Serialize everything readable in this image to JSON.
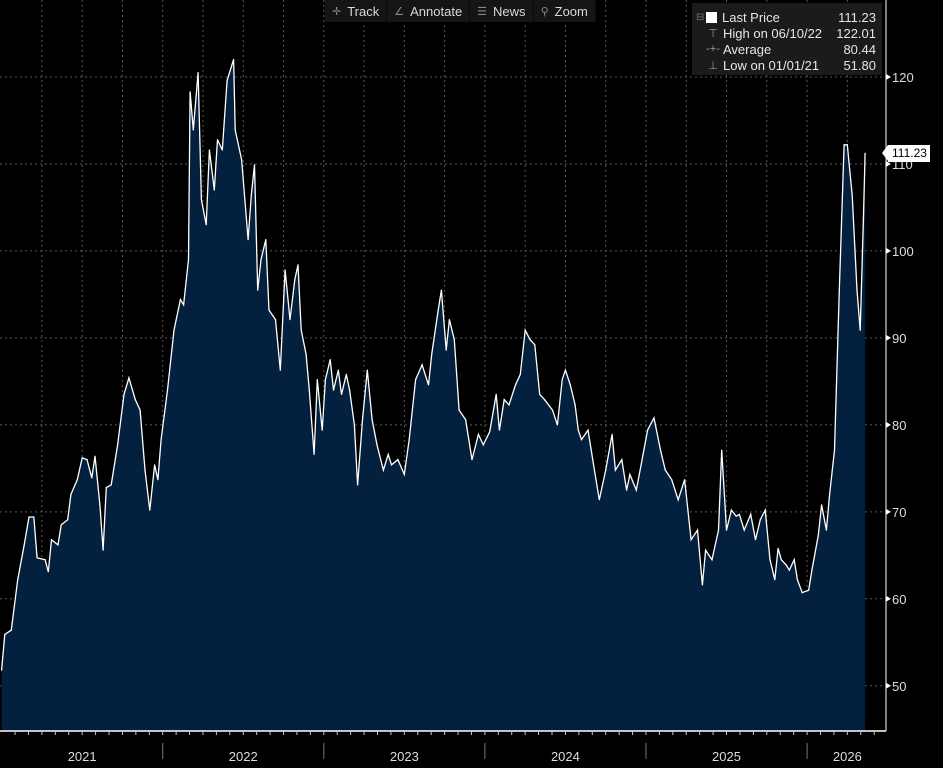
{
  "toolbar": {
    "track": "Track",
    "annotate": "Annotate",
    "news": "News",
    "zoom": "Zoom"
  },
  "legend": {
    "last_label": "Last Price",
    "last_value": "111.23",
    "high_label": "High on 06/10/22",
    "high_value": "122.01",
    "avg_label": "Average",
    "avg_value": "80.44",
    "low_label": "Low on 01/01/21",
    "low_value": "51.80"
  },
  "last_price_tag": "111.23",
  "colors": {
    "fill": "#04203f",
    "line": "#ffffff",
    "grid": "#5a5a5a"
  },
  "chart_data": {
    "type": "area",
    "title": "",
    "xlabel": "",
    "ylabel": "",
    "xlim": [
      2020.99,
      2026.49
    ],
    "ylim": [
      44.8,
      128.85
    ],
    "grid": true,
    "legend_position": "top-right",
    "y_ticks": [
      50,
      60,
      70,
      80,
      90,
      100,
      110,
      120
    ],
    "y_tick_labels": [
      "50",
      "60",
      "70",
      "80",
      "90",
      "100",
      "110",
      "120"
    ],
    "x_year_labels": [
      {
        "label": "2021",
        "center": 2021.5
      },
      {
        "label": "2022",
        "center": 2022.5
      },
      {
        "label": "2023",
        "center": 2023.5
      },
      {
        "label": "2024",
        "center": 2024.5
      },
      {
        "label": "2025",
        "center": 2025.5
      },
      {
        "label": "2026",
        "center": 2026.25
      }
    ],
    "x_year_dividers": [
      2022,
      2023,
      2024,
      2025,
      2026
    ],
    "series": [
      {
        "name": "Last Price",
        "points": [
          [
            2021.0,
            51.8
          ],
          [
            2021.02,
            55.9
          ],
          [
            2021.06,
            56.4
          ],
          [
            2021.1,
            62.2
          ],
          [
            2021.14,
            66.2
          ],
          [
            2021.17,
            69.4
          ],
          [
            2021.2,
            69.4
          ],
          [
            2021.22,
            64.7
          ],
          [
            2021.27,
            64.5
          ],
          [
            2021.29,
            63.1
          ],
          [
            2021.31,
            66.8
          ],
          [
            2021.35,
            66.2
          ],
          [
            2021.37,
            68.5
          ],
          [
            2021.41,
            69.1
          ],
          [
            2021.43,
            72.0
          ],
          [
            2021.47,
            73.7
          ],
          [
            2021.5,
            76.2
          ],
          [
            2021.53,
            76.0
          ],
          [
            2021.56,
            73.9
          ],
          [
            2021.58,
            76.4
          ],
          [
            2021.61,
            70.8
          ],
          [
            2021.63,
            65.6
          ],
          [
            2021.65,
            72.8
          ],
          [
            2021.68,
            73.1
          ],
          [
            2021.72,
            77.7
          ],
          [
            2021.76,
            83.5
          ],
          [
            2021.79,
            85.4
          ],
          [
            2021.83,
            82.9
          ],
          [
            2021.86,
            81.7
          ],
          [
            2021.89,
            74.8
          ],
          [
            2021.92,
            70.2
          ],
          [
            2021.95,
            75.4
          ],
          [
            2021.97,
            73.7
          ],
          [
            2021.99,
            78.3
          ],
          [
            2022.03,
            84.0
          ],
          [
            2022.07,
            90.9
          ],
          [
            2022.11,
            94.4
          ],
          [
            2022.13,
            93.8
          ],
          [
            2022.16,
            99.0
          ],
          [
            2022.17,
            118.3
          ],
          [
            2022.19,
            113.9
          ],
          [
            2022.22,
            120.5
          ],
          [
            2022.24,
            105.9
          ],
          [
            2022.27,
            103.0
          ],
          [
            2022.29,
            111.6
          ],
          [
            2022.32,
            107.0
          ],
          [
            2022.34,
            112.8
          ],
          [
            2022.37,
            111.6
          ],
          [
            2022.4,
            119.6
          ],
          [
            2022.44,
            122.01
          ],
          [
            2022.45,
            113.9
          ],
          [
            2022.49,
            110.5
          ],
          [
            2022.53,
            101.3
          ],
          [
            2022.55,
            106.4
          ],
          [
            2022.57,
            109.9
          ],
          [
            2022.59,
            95.5
          ],
          [
            2022.61,
            99.0
          ],
          [
            2022.64,
            101.3
          ],
          [
            2022.66,
            93.2
          ],
          [
            2022.7,
            92.1
          ],
          [
            2022.73,
            86.3
          ],
          [
            2022.76,
            97.8
          ],
          [
            2022.79,
            92.1
          ],
          [
            2022.82,
            96.7
          ],
          [
            2022.84,
            98.4
          ],
          [
            2022.86,
            90.9
          ],
          [
            2022.89,
            88.1
          ],
          [
            2022.91,
            84.0
          ],
          [
            2022.94,
            76.6
          ],
          [
            2022.96,
            85.2
          ],
          [
            2022.99,
            79.4
          ],
          [
            2023.01,
            85.2
          ],
          [
            2023.04,
            87.5
          ],
          [
            2023.06,
            84.0
          ],
          [
            2023.09,
            86.3
          ],
          [
            2023.11,
            83.5
          ],
          [
            2023.14,
            85.8
          ],
          [
            2023.16,
            84.0
          ],
          [
            2023.19,
            80.0
          ],
          [
            2023.21,
            73.1
          ],
          [
            2023.24,
            80.6
          ],
          [
            2023.27,
            86.3
          ],
          [
            2023.3,
            80.6
          ],
          [
            2023.33,
            77.7
          ],
          [
            2023.37,
            74.8
          ],
          [
            2023.4,
            76.6
          ],
          [
            2023.42,
            75.4
          ],
          [
            2023.46,
            76.0
          ],
          [
            2023.5,
            74.3
          ],
          [
            2023.53,
            78.3
          ],
          [
            2023.57,
            85.2
          ],
          [
            2023.61,
            86.9
          ],
          [
            2023.65,
            84.6
          ],
          [
            2023.67,
            88.1
          ],
          [
            2023.71,
            93.2
          ],
          [
            2023.73,
            95.5
          ],
          [
            2023.76,
            88.6
          ],
          [
            2023.78,
            92.1
          ],
          [
            2023.81,
            89.8
          ],
          [
            2023.84,
            81.7
          ],
          [
            2023.88,
            80.6
          ],
          [
            2023.92,
            76.0
          ],
          [
            2023.96,
            78.9
          ],
          [
            2023.99,
            77.7
          ],
          [
            2024.03,
            79.2
          ],
          [
            2024.07,
            83.5
          ],
          [
            2024.09,
            79.4
          ],
          [
            2024.12,
            82.9
          ],
          [
            2024.15,
            82.3
          ],
          [
            2024.19,
            84.6
          ],
          [
            2024.22,
            85.8
          ],
          [
            2024.25,
            90.9
          ],
          [
            2024.28,
            89.8
          ],
          [
            2024.31,
            89.2
          ],
          [
            2024.34,
            83.5
          ],
          [
            2024.37,
            82.9
          ],
          [
            2024.42,
            81.7
          ],
          [
            2024.45,
            80.0
          ],
          [
            2024.48,
            85.2
          ],
          [
            2024.5,
            86.3
          ],
          [
            2024.53,
            84.6
          ],
          [
            2024.56,
            82.3
          ],
          [
            2024.58,
            79.4
          ],
          [
            2024.6,
            78.3
          ],
          [
            2024.64,
            79.4
          ],
          [
            2024.66,
            77.1
          ],
          [
            2024.69,
            73.7
          ],
          [
            2024.71,
            71.4
          ],
          [
            2024.75,
            74.8
          ],
          [
            2024.79,
            78.9
          ],
          [
            2024.81,
            74.8
          ],
          [
            2024.85,
            76.0
          ],
          [
            2024.88,
            72.5
          ],
          [
            2024.9,
            74.3
          ],
          [
            2024.94,
            72.5
          ],
          [
            2024.97,
            75.4
          ],
          [
            2025.01,
            79.4
          ],
          [
            2025.05,
            80.8
          ],
          [
            2025.09,
            77.1
          ],
          [
            2025.12,
            74.8
          ],
          [
            2025.16,
            73.7
          ],
          [
            2025.2,
            71.4
          ],
          [
            2025.24,
            73.7
          ],
          [
            2025.26,
            70.2
          ],
          [
            2025.28,
            66.8
          ],
          [
            2025.32,
            67.9
          ],
          [
            2025.35,
            61.6
          ],
          [
            2025.37,
            65.6
          ],
          [
            2025.41,
            64.5
          ],
          [
            2025.45,
            67.9
          ],
          [
            2025.47,
            77.1
          ],
          [
            2025.5,
            67.9
          ],
          [
            2025.53,
            70.2
          ],
          [
            2025.56,
            69.5
          ],
          [
            2025.58,
            69.7
          ],
          [
            2025.61,
            67.9
          ],
          [
            2025.65,
            69.7
          ],
          [
            2025.68,
            66.8
          ],
          [
            2025.71,
            69.1
          ],
          [
            2025.74,
            70.2
          ],
          [
            2025.77,
            64.5
          ],
          [
            2025.8,
            62.2
          ],
          [
            2025.82,
            65.8
          ],
          [
            2025.84,
            64.5
          ],
          [
            2025.87,
            63.9
          ],
          [
            2025.89,
            63.3
          ],
          [
            2025.92,
            64.5
          ],
          [
            2025.94,
            62.2
          ],
          [
            2025.97,
            60.7
          ],
          [
            2026.01,
            61.0
          ],
          [
            2026.03,
            63.3
          ],
          [
            2026.07,
            67.3
          ],
          [
            2026.09,
            70.8
          ],
          [
            2026.12,
            67.9
          ],
          [
            2026.14,
            72.0
          ],
          [
            2026.17,
            77.1
          ],
          [
            2026.2,
            95.5
          ],
          [
            2026.23,
            112.2
          ],
          [
            2026.25,
            112.2
          ],
          [
            2026.28,
            106.4
          ],
          [
            2026.31,
            95.5
          ],
          [
            2026.33,
            90.9
          ],
          [
            2026.35,
            103.6
          ],
          [
            2026.36,
            111.23
          ]
        ]
      }
    ]
  }
}
